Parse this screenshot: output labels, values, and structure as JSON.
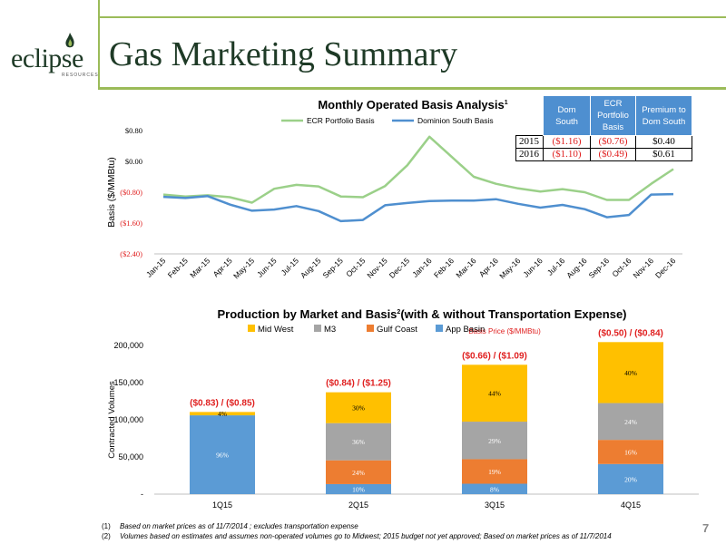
{
  "logo": {
    "text": "eclipse",
    "subtext": "RESOURCES"
  },
  "title": "Gas Marketing Summary",
  "page_number": "7",
  "colors": {
    "accent_green": "#9bbb59",
    "dark_green": "#1e3a26",
    "ecr_line": "#9bd089",
    "dominion_line": "#4f8fcf",
    "negative_red": "#e02020"
  },
  "basis_table": {
    "headers": [
      "",
      "Dom South",
      "ECR Portfolio Basis",
      "Premium to Dom South"
    ],
    "rows": [
      {
        "year": "2015",
        "dom_south": "($1.16)",
        "ecr": "($0.76)",
        "premium": "$0.40"
      },
      {
        "year": "2016",
        "dom_south": "($1.10)",
        "ecr": "($0.49)",
        "premium": "$0.61"
      }
    ]
  },
  "chart_data": [
    {
      "type": "line",
      "title": "Monthly Operated Basis Analysis",
      "title_footnote": "1",
      "ylabel": "Basis ($/MMBtu)",
      "ylim": [
        -2.4,
        0.8
      ],
      "yticks": [
        0.8,
        0.0,
        -0.8,
        -1.6,
        -2.4
      ],
      "ytick_labels": [
        "$0.80",
        "$0.00",
        "($0.80)",
        "($1.60)",
        "($2.40)"
      ],
      "categories": [
        "Jan-15",
        "Feb-15",
        "Mar-15",
        "Apr-15",
        "May-15",
        "Jun-15",
        "Jul-15",
        "Aug-15",
        "Sep-15",
        "Oct-15",
        "Nov-15",
        "Dec-15",
        "Jan-16",
        "Feb-16",
        "Mar-16",
        "Apr-16",
        "May-16",
        "Jun-16",
        "Jul-16",
        "Aug-16",
        "Sep-16",
        "Oct-16",
        "Nov-16",
        "Dec-16"
      ],
      "legend_position": "top",
      "series": [
        {
          "name": "ECR Portfolio Basis",
          "color": "#9bd089",
          "values": [
            -0.86,
            -0.91,
            -0.88,
            -0.93,
            -1.07,
            -0.71,
            -0.61,
            -0.65,
            -0.91,
            -0.93,
            -0.64,
            -0.1,
            0.64,
            0.12,
            -0.4,
            -0.58,
            -0.7,
            -0.78,
            -0.72,
            -0.8,
            -1.0,
            -1.0,
            -0.58,
            -0.2
          ]
        },
        {
          "name": "Dominion South Basis",
          "color": "#4f8fcf",
          "values": [
            -0.92,
            -0.95,
            -0.9,
            -1.12,
            -1.28,
            -1.25,
            -1.16,
            -1.29,
            -1.55,
            -1.52,
            -1.14,
            -1.08,
            -1.03,
            -1.02,
            -1.02,
            -0.98,
            -1.1,
            -1.2,
            -1.13,
            -1.24,
            -1.45,
            -1.39,
            -0.86,
            -0.85
          ]
        }
      ]
    },
    {
      "type": "bar",
      "stacked": true,
      "title": "Production by Market and Basis",
      "title_footnote": "2",
      "title_suffix": "(with & without Transportation Expense)",
      "subtitle": "Basis Price ($/MMBtu)",
      "ylabel": "Contracted Volumes",
      "ylim": [
        0,
        200000
      ],
      "yticks": [
        0,
        50000,
        100000,
        150000,
        200000
      ],
      "ytick_labels": [
        "-",
        "50,000",
        "100,000",
        "150,000",
        "200,000"
      ],
      "categories": [
        "1Q15",
        "2Q15",
        "3Q15",
        "4Q15"
      ],
      "legend_position": "top",
      "series": [
        {
          "name": "App Basin",
          "color": "#5b9bd5",
          "values": [
            106000,
            13500,
            14000,
            40500
          ],
          "labels": [
            "96%",
            "10%",
            "8%",
            "20%"
          ]
        },
        {
          "name": "Gulf Coast",
          "color": "#ed7d31",
          "values": [
            0,
            32000,
            33000,
            32500
          ],
          "labels": [
            "",
            "24%",
            "19%",
            "16%"
          ]
        },
        {
          "name": "M3",
          "color": "#a5a5a5",
          "values": [
            0,
            50000,
            50500,
            49500
          ],
          "labels": [
            "",
            "36%",
            "29%",
            "24%"
          ]
        },
        {
          "name": "Mid West",
          "color": "#ffc000",
          "values": [
            4500,
            41500,
            76500,
            82000
          ],
          "labels": [
            "4%",
            "30%",
            "44%",
            "40%"
          ]
        }
      ],
      "basis_labels": [
        "($0.83) / ($0.85)",
        "($0.84) / ($1.25)",
        "($0.66) / ($1.09)",
        "($0.50) / ($0.84)"
      ]
    }
  ],
  "footnotes": [
    {
      "num": "(1)",
      "text": "Based on market prices as of 11/7/2014 ; excludes transportation expense"
    },
    {
      "num": "(2)",
      "text": "Volumes based on estimates and assumes non-operated volumes go to Midwest; 2015 budget not yet approved; Based on market prices as of 11/7/2014"
    }
  ]
}
